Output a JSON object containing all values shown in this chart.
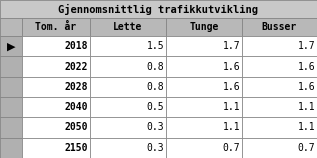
{
  "title": "Gjennomsnittlig trafikkutvikling",
  "col_headers": [
    "Tom. år",
    "Lette",
    "Tunge",
    "Busser"
  ],
  "rows": [
    [
      "2018",
      "1.5",
      "1.7",
      "1.7"
    ],
    [
      "2022",
      "0.8",
      "1.6",
      "1.6"
    ],
    [
      "2028",
      "0.8",
      "1.6",
      "1.6"
    ],
    [
      "2040",
      "0.5",
      "1.1",
      "1.1"
    ],
    [
      "2050",
      "0.3",
      "1.1",
      "1.1"
    ],
    [
      "2150",
      "0.3",
      "0.7",
      "0.7"
    ]
  ],
  "title_bg": "#c8c8c8",
  "header_bg": "#b8b8b8",
  "indicator_bg": "#b0b0b0",
  "data_bg": "#ffffff",
  "border_color": "#808080",
  "outer_bg": "#b0b0b0",
  "title_fontsize": 7.5,
  "header_fontsize": 7.0,
  "data_fontsize": 7.0,
  "figsize": [
    3.17,
    1.58
  ],
  "dpi": 100
}
